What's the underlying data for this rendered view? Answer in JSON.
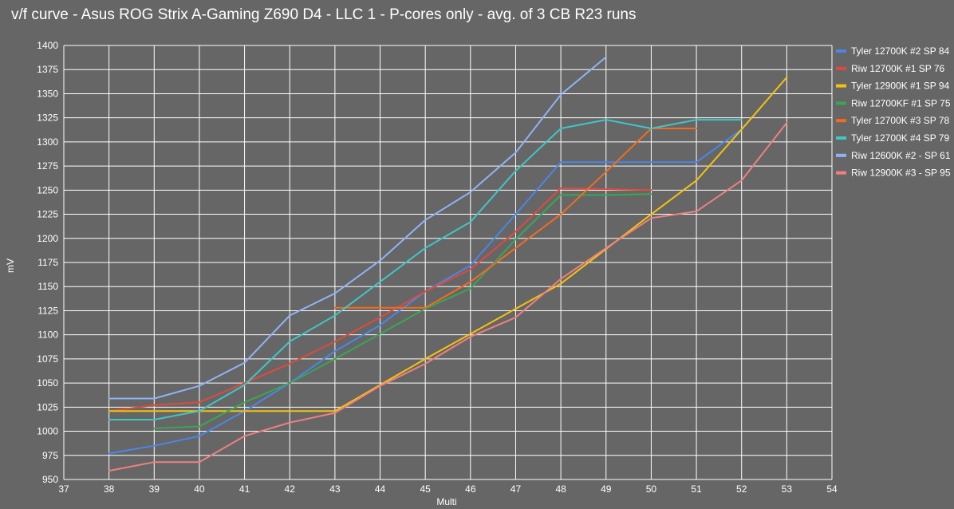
{
  "chart_data": {
    "type": "line",
    "title": "v/f curve - Asus ROG Strix A-Gaming Z690 D4 - LLC 1 - P-cores only - avg. of 3 CB R23 runs",
    "xlabel": "Multi",
    "ylabel": "mV",
    "xlim": [
      37,
      54
    ],
    "ylim": [
      950,
      1400
    ],
    "x_ticks": [
      "37",
      "38",
      "39",
      "40",
      "41",
      "42",
      "43",
      "44",
      "45",
      "46",
      "47",
      "48",
      "49",
      "50",
      "51",
      "52",
      "53",
      "54"
    ],
    "y_ticks": [
      "950",
      "975",
      "1000",
      "1025",
      "1050",
      "1075",
      "1100",
      "1125",
      "1150",
      "1175",
      "1200",
      "1225",
      "1250",
      "1275",
      "1300",
      "1325",
      "1350",
      "1375",
      "1400"
    ],
    "grid": true,
    "legend_position": "right",
    "series": [
      {
        "name": "Tyler 12700K #2 SP 84",
        "color": "#4a86e8",
        "points": [
          [
            38,
            977
          ],
          [
            39,
            985
          ],
          [
            40,
            995
          ],
          [
            41,
            1021
          ],
          [
            42,
            1050
          ],
          [
            43,
            1083
          ],
          [
            44,
            1110
          ],
          [
            45,
            1145
          ],
          [
            46,
            1172
          ],
          [
            47,
            1225
          ],
          [
            48,
            1279
          ],
          [
            49,
            1279
          ],
          [
            50,
            1279
          ],
          [
            51,
            1279
          ],
          [
            52,
            1313
          ]
        ]
      },
      {
        "name": "Riw 12700K #1 SP 76",
        "color": "#e04a3c",
        "points": [
          [
            38,
            1021
          ],
          [
            39,
            1027
          ],
          [
            40,
            1030
          ],
          [
            41,
            1050
          ],
          [
            42,
            1070
          ],
          [
            43,
            1093
          ],
          [
            44,
            1118
          ],
          [
            45,
            1145
          ],
          [
            46,
            1168
          ],
          [
            47,
            1207
          ],
          [
            48,
            1252
          ],
          [
            49,
            1251
          ],
          [
            50,
            1250
          ]
        ]
      },
      {
        "name": "Tyler 12900K #1 SP 94",
        "color": "#f4c20d",
        "points": [
          [
            38,
            1021
          ],
          [
            39,
            1021
          ],
          [
            40,
            1021
          ],
          [
            41,
            1021
          ],
          [
            42,
            1021
          ],
          [
            43,
            1021
          ],
          [
            44,
            1048
          ],
          [
            45,
            1075
          ],
          [
            46,
            1101
          ],
          [
            47,
            1127
          ],
          [
            48,
            1153
          ],
          [
            49,
            1189
          ],
          [
            50,
            1225
          ],
          [
            51,
            1260
          ],
          [
            52,
            1313
          ],
          [
            53,
            1367
          ]
        ]
      },
      {
        "name": "Riw 12700KF #1 SP 75",
        "color": "#3aa655",
        "points": [
          [
            39,
            1003
          ],
          [
            40,
            1005
          ],
          [
            41,
            1030
          ],
          [
            42,
            1050
          ],
          [
            43,
            1075
          ],
          [
            44,
            1101
          ],
          [
            45,
            1127
          ],
          [
            46,
            1148
          ],
          [
            47,
            1199
          ],
          [
            48,
            1245
          ],
          [
            49,
            1245
          ],
          [
            50,
            1246
          ]
        ]
      },
      {
        "name": "Tyler 12700K #3 SP 78",
        "color": "#f36c1c",
        "points": [
          [
            43,
            1128
          ],
          [
            44,
            1128
          ],
          [
            45,
            1128
          ],
          [
            46,
            1155
          ],
          [
            47,
            1190
          ],
          [
            48,
            1225
          ],
          [
            49,
            1269
          ],
          [
            50,
            1314
          ],
          [
            51,
            1314
          ]
        ]
      },
      {
        "name": "Tyler 12700K #4 SP 79",
        "color": "#3fc6c6",
        "points": [
          [
            38,
            1012
          ],
          [
            39,
            1012
          ],
          [
            40,
            1021
          ],
          [
            41,
            1048
          ],
          [
            42,
            1093
          ],
          [
            43,
            1120
          ],
          [
            44,
            1155
          ],
          [
            45,
            1190
          ],
          [
            46,
            1217
          ],
          [
            47,
            1270
          ],
          [
            48,
            1314
          ],
          [
            49,
            1323
          ],
          [
            50,
            1314
          ],
          [
            51,
            1323
          ],
          [
            52,
            1323
          ]
        ]
      },
      {
        "name": "Riw 12600K #2 - SP 61",
        "color": "#8fb3f5",
        "points": [
          [
            38,
            1034
          ],
          [
            39,
            1034
          ],
          [
            40,
            1047
          ],
          [
            41,
            1071
          ],
          [
            42,
            1120
          ],
          [
            43,
            1143
          ],
          [
            44,
            1177
          ],
          [
            45,
            1219
          ],
          [
            46,
            1248
          ],
          [
            47,
            1289
          ],
          [
            48,
            1349
          ],
          [
            49,
            1388
          ]
        ]
      },
      {
        "name": "Riw 12900K #3 - SP 95",
        "color": "#f08080",
        "points": [
          [
            38,
            959
          ],
          [
            39,
            968
          ],
          [
            40,
            968
          ],
          [
            41,
            995
          ],
          [
            42,
            1009
          ],
          [
            43,
            1019
          ],
          [
            44,
            1047
          ],
          [
            45,
            1070
          ],
          [
            46,
            1098
          ],
          [
            47,
            1118
          ],
          [
            48,
            1158
          ],
          [
            49,
            1190
          ],
          [
            50,
            1221
          ],
          [
            51,
            1228
          ],
          [
            52,
            1260
          ],
          [
            53,
            1320
          ]
        ]
      }
    ]
  }
}
